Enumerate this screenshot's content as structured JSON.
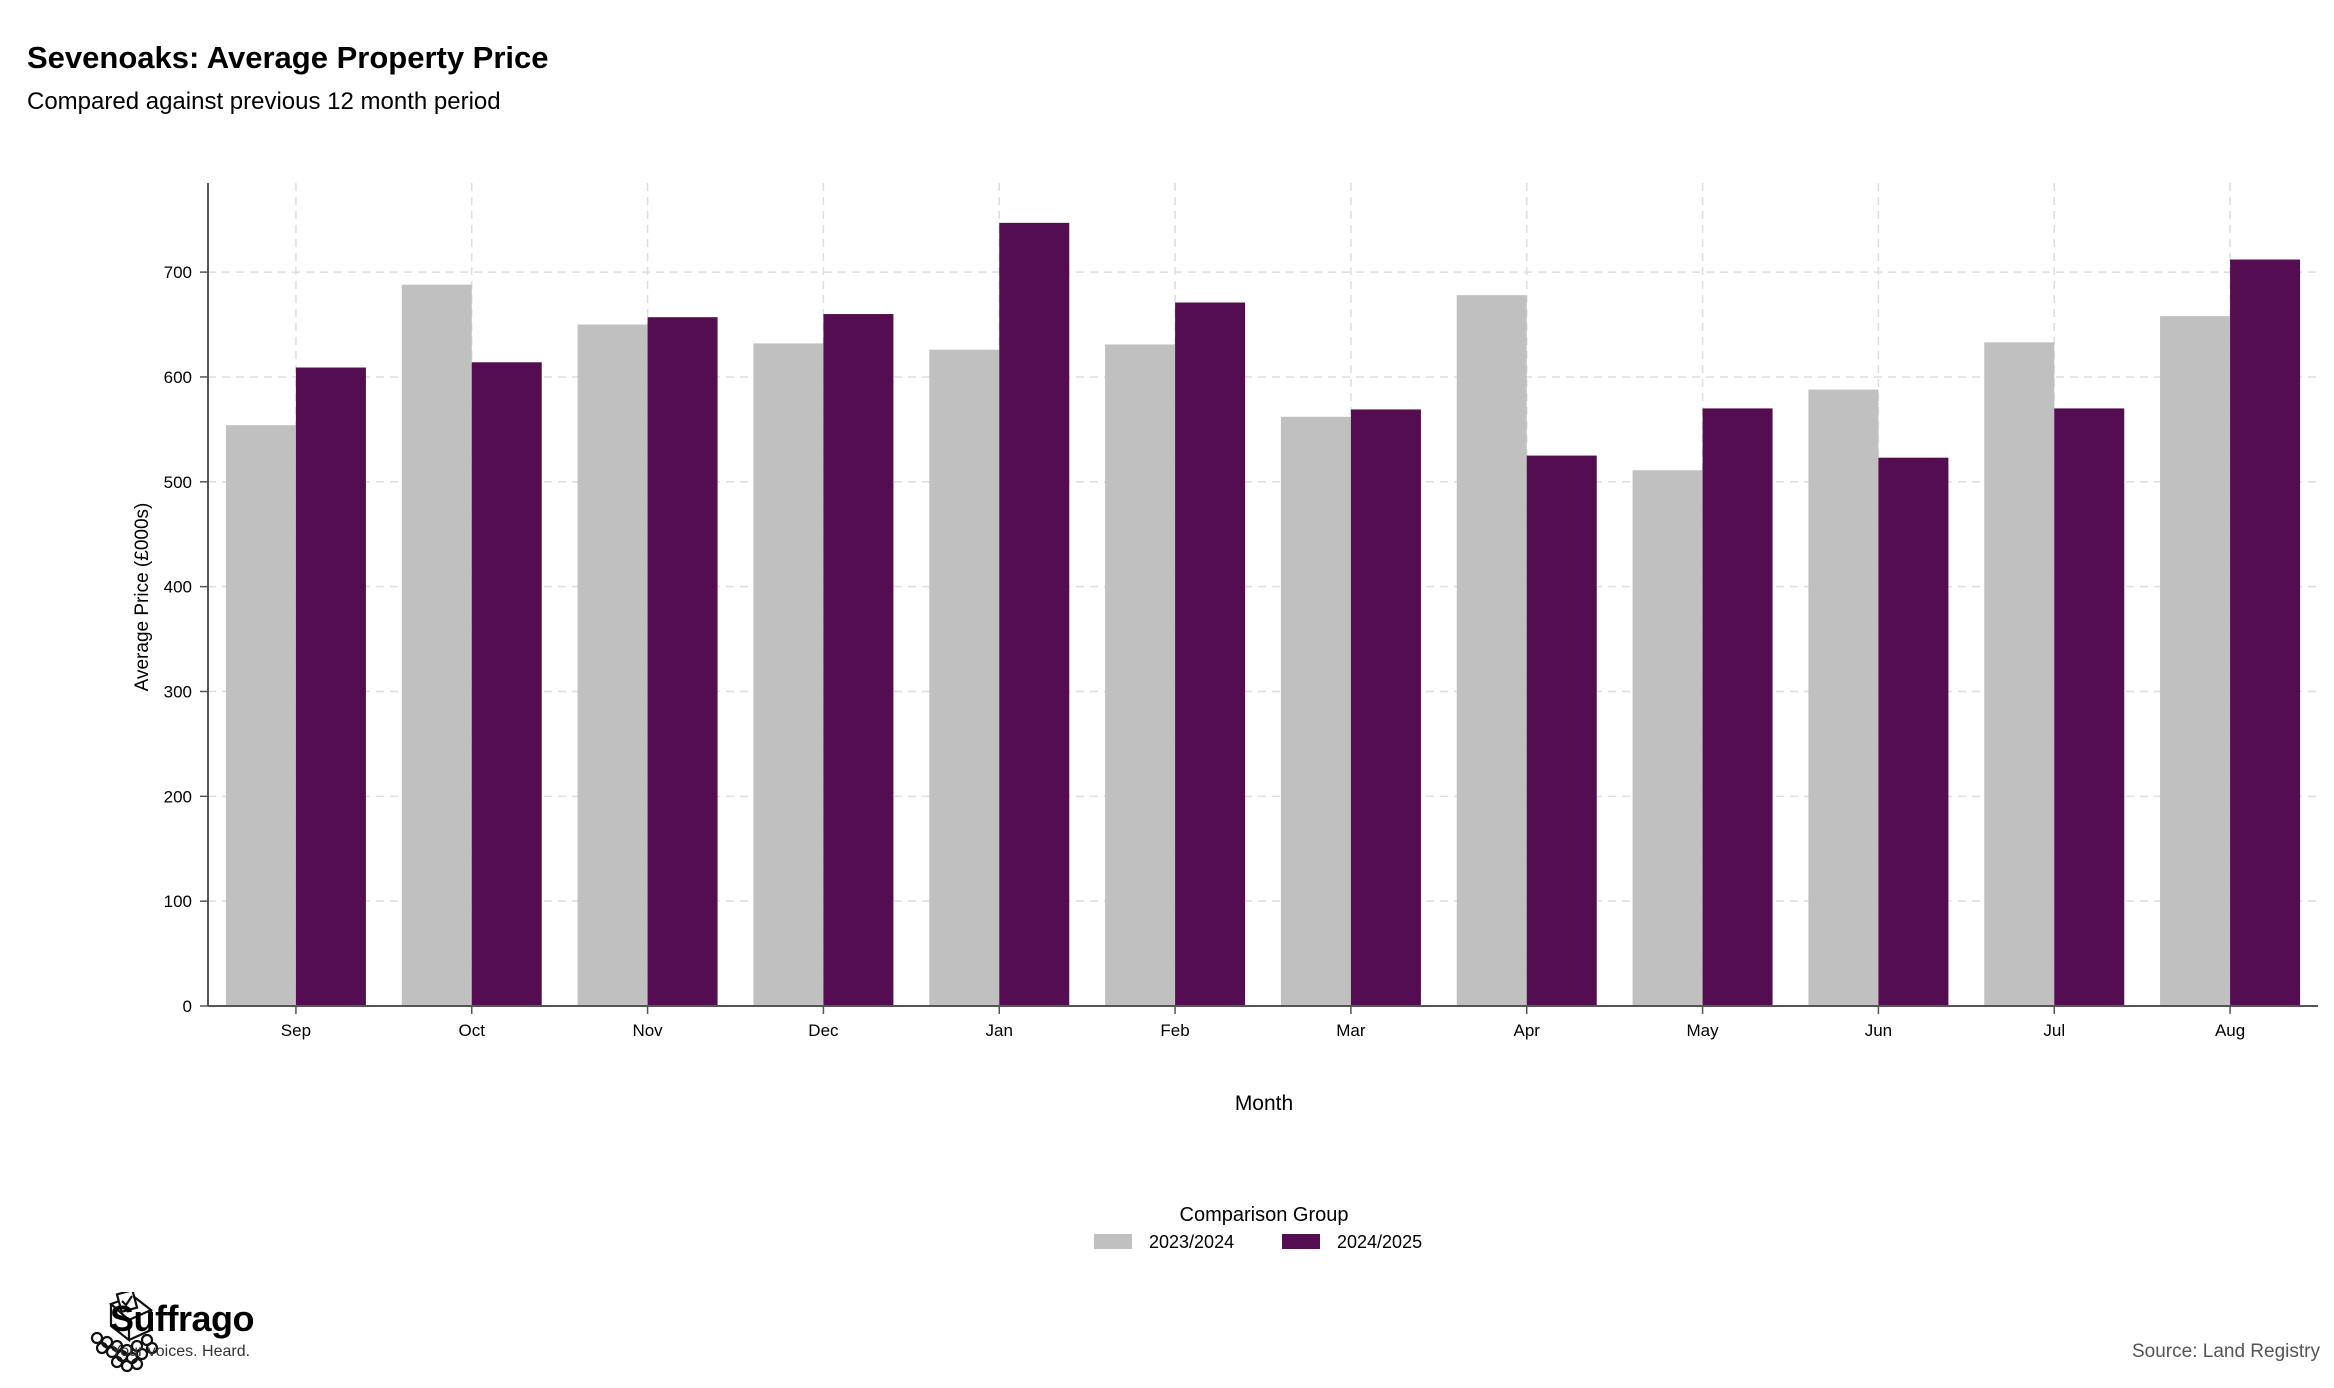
{
  "header": {
    "title": "Sevenoaks: Average Property Price",
    "subtitle": "Compared against previous 12 month period"
  },
  "chart_data": {
    "type": "bar",
    "title": "Sevenoaks: Average Property Price",
    "subtitle": "Compared against previous 12 month period",
    "xlabel": "Month",
    "ylabel": "Average Price (£000s)",
    "ylim": [
      0,
      785
    ],
    "yticks": [
      0,
      100,
      200,
      300,
      400,
      500,
      600,
      700
    ],
    "grid": true,
    "legend_title": "Comparison Group",
    "legend_position": "bottom-center",
    "categories": [
      "Sep",
      "Oct",
      "Nov",
      "Dec",
      "Jan",
      "Feb",
      "Mar",
      "Apr",
      "May",
      "Jun",
      "Jul",
      "Aug"
    ],
    "series": [
      {
        "name": "2023/2024",
        "color": "#c0c0c0",
        "values": [
          554,
          688,
          650,
          632,
          626,
          631,
          562,
          678,
          511,
          588,
          633,
          658
        ]
      },
      {
        "name": "2024/2025",
        "color": "#540d50",
        "values": [
          609,
          614,
          657,
          660,
          747,
          671,
          569,
          525,
          570,
          523,
          570,
          712
        ]
      }
    ]
  },
  "footer": {
    "brand": "Suffrago",
    "tagline": "Your voices. Heard.",
    "source": "Source: Land Registry",
    "logo_icon": "ballot-box-crowd-icon"
  }
}
